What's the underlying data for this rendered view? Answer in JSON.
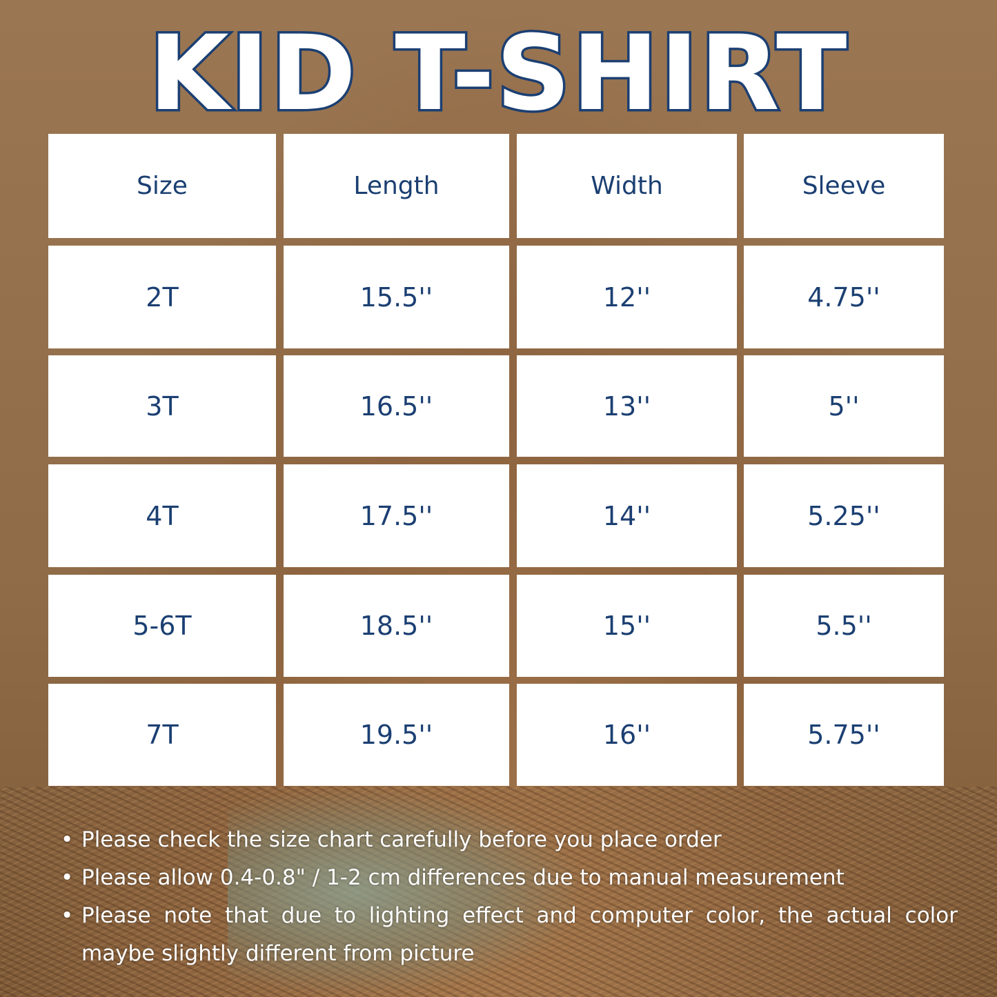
{
  "title": "KID T-SHIRT",
  "table": {
    "headers": [
      "Size",
      "Length",
      "Width",
      "Sleeve"
    ],
    "rows": [
      [
        "2T",
        "15.5''",
        "12''",
        "4.75''"
      ],
      [
        "3T",
        "16.5''",
        "13''",
        "5''"
      ],
      [
        "4T",
        "17.5''",
        "14''",
        "5.25''"
      ],
      [
        "5-6T",
        "18.5''",
        "15''",
        "5.5''"
      ],
      [
        "7T",
        "19.5''",
        "16''",
        "5.75''"
      ]
    ]
  },
  "notes": [
    "Please check the size chart carefully before you place order",
    "Please allow 0.4-0.8\" / 1-2 cm differences due to manual measurement",
    "Please note that due to lighting effect and computer color, the actual color maybe slightly different from picture"
  ],
  "colors": {
    "text": "#1b3f72",
    "background": "#8f6b47",
    "cell": "#ffffff"
  }
}
